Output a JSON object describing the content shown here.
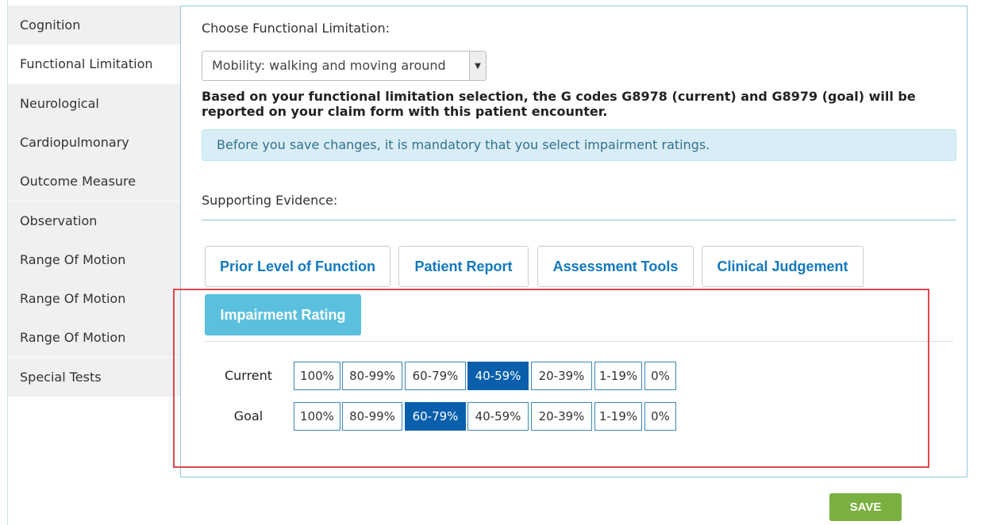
{
  "sidebar": {
    "items": [
      "Cognition",
      "Functional Limitation",
      "Neurological",
      "Cardiopulmonary",
      "Outcome Measure",
      "Observation",
      "Range Of Motion",
      "Range Of Motion",
      "Range Of Motion",
      "Special Tests"
    ],
    "active": 1
  },
  "form": {
    "choose_label": "Choose Functional Limitation:",
    "select_value": "Mobility: walking and moving around",
    "description": "Based on your functional limitation selection, the G codes G8978 (current) and G8979 (goal) will be reported on your claim form with this patient encounter.",
    "alert": "Before you save changes, it is mandatory that you select impairment ratings.",
    "supporting_label": "Supporting Evidence:",
    "tabs": [
      "Prior Level of Function",
      "Patient Report",
      "Assessment Tools",
      "Clinical Judgement"
    ],
    "active_tab": "Impairment Rating",
    "ratings": [
      {
        "label": "Current",
        "options": [
          "100%",
          "80-99%",
          "60-79%",
          "40-59%",
          "20-39%",
          "1-19%",
          "0%"
        ],
        "selected": 3
      },
      {
        "label": "Goal",
        "options": [
          "100%",
          "80-99%",
          "60-79%",
          "40-59%",
          "20-39%",
          "1-19%",
          "0%"
        ],
        "selected": 2
      }
    ]
  },
  "save_button": "SAVE"
}
